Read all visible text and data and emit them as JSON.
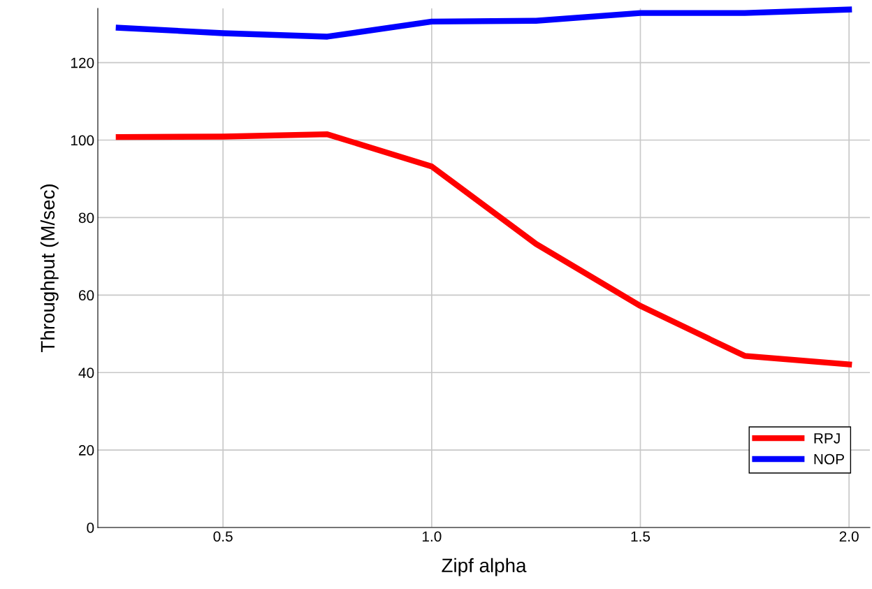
{
  "chart_data": {
    "type": "line",
    "xlabel": "Zipf alpha",
    "ylabel": "Throughput (M/sec)",
    "x": [
      0.25,
      0.5,
      0.75,
      1.0,
      1.25,
      1.5,
      1.75,
      2.0
    ],
    "series": [
      {
        "name": "RPJ",
        "color": "#ff0000",
        "values": [
          100.8,
          100.9,
          101.5,
          93.2,
          73.2,
          57.2,
          44.3,
          42.1
        ]
      },
      {
        "name": "NOP",
        "color": "#0000ff",
        "values": [
          129.0,
          127.6,
          126.7,
          130.6,
          130.8,
          132.8,
          132.8,
          133.7
        ]
      }
    ],
    "xlim": [
      0.2,
      2.05
    ],
    "xticks": [
      {
        "value": 0.5,
        "label": "0.5"
      },
      {
        "value": 1.0,
        "label": "1.0"
      },
      {
        "value": 1.5,
        "label": "1.5"
      },
      {
        "value": 2.0,
        "label": "2.0"
      }
    ],
    "ylim": [
      0,
      134
    ],
    "yticks": [
      0,
      20,
      40,
      60,
      80,
      100,
      120
    ],
    "grid": true,
    "legend": "bottom right",
    "marker": "none",
    "line_style": "solid"
  }
}
